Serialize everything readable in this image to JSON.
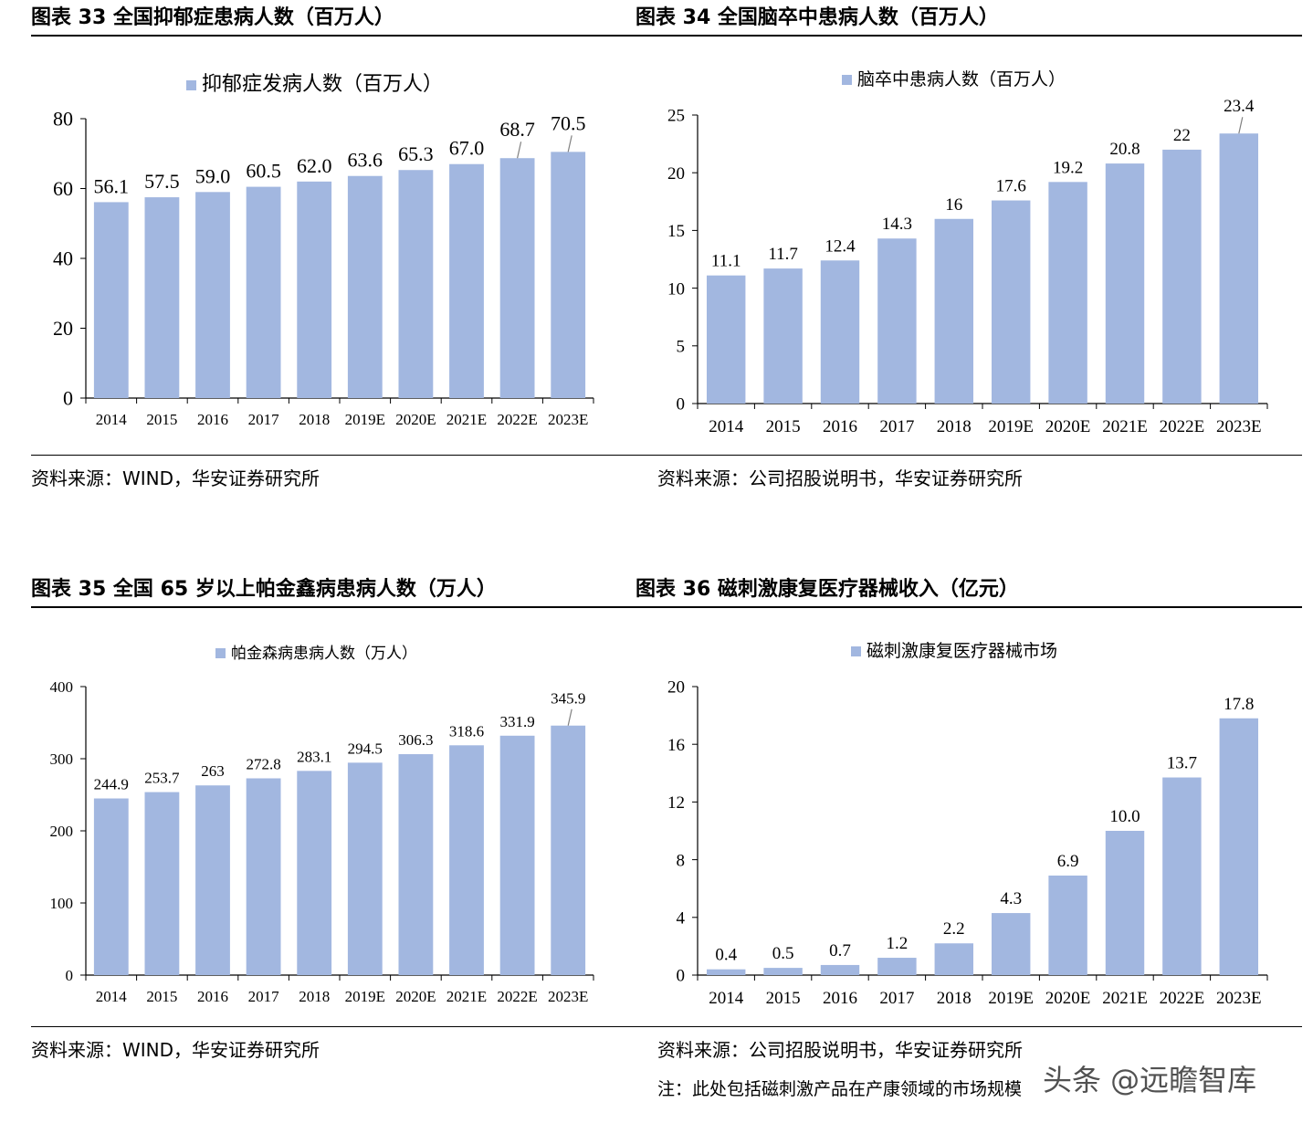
{
  "panels": {
    "p33": {
      "title": "图表 33 全国抑郁症患病人数（百万人）",
      "source": "资料来源：WIND，华安证券研究所"
    },
    "p34": {
      "title": "图表 34 全国脑卒中患病人数（百万人）",
      "source": "资料来源：公司招股说明书，华安证券研究所"
    },
    "p35": {
      "title": "图表 35 全国 65 岁以上帕金鑫病患病人数（万人）",
      "source": "资料来源：WIND，华安证券研究所"
    },
    "p36": {
      "title": "图表 36 磁刺激康复医疗器械收入（亿元）",
      "source": "资料来源：公司招股说明书，华安证券研究所"
    }
  },
  "note": "注：此处包括磁刺激产品在产康领域的市场规模",
  "watermark": "头条 @远瞻智库",
  "colors": {
    "bar": "#a2b7e0",
    "axis": "#000000",
    "leader": "#808080"
  },
  "chart_data": [
    {
      "type": "bar",
      "categories": [
        "2014",
        "2015",
        "2016",
        "2017",
        "2018",
        "2019E",
        "2020E",
        "2021E",
        "2022E",
        "2023E"
      ],
      "series": [
        {
          "name": "抑郁症发病人数（百万人）",
          "values": [
            56.1,
            57.5,
            59.0,
            60.5,
            62.0,
            63.6,
            65.3,
            67.0,
            68.7,
            70.5
          ]
        }
      ],
      "labels": [
        "56.1",
        "57.5",
        "59.0",
        "60.5",
        "62.0",
        "63.6",
        "65.3",
        "67.0",
        "68.7",
        "70.5"
      ],
      "yticks": [
        0,
        20,
        40,
        60,
        80
      ],
      "ylim": [
        0,
        80
      ],
      "legend": "top-center"
    },
    {
      "type": "bar",
      "categories": [
        "2014",
        "2015",
        "2016",
        "2017",
        "2018",
        "2019E",
        "2020E",
        "2021E",
        "2022E",
        "2023E"
      ],
      "series": [
        {
          "name": "脑卒中患病人数（百万人）",
          "values": [
            11.1,
            11.7,
            12.4,
            14.3,
            16,
            17.6,
            19.2,
            20.8,
            22,
            23.4
          ]
        }
      ],
      "labels": [
        "11.1",
        "11.7",
        "12.4",
        "14.3",
        "16",
        "17.6",
        "19.2",
        "20.8",
        "22",
        "23.4"
      ],
      "yticks": [
        0,
        5,
        10,
        15,
        20,
        25
      ],
      "ylim": [
        0,
        25
      ],
      "legend": "top-center"
    },
    {
      "type": "bar",
      "categories": [
        "2014",
        "2015",
        "2016",
        "2017",
        "2018",
        "2019E",
        "2020E",
        "2021E",
        "2022E",
        "2023E"
      ],
      "series": [
        {
          "name": "帕金森病患病人数（万人）",
          "values": [
            244.9,
            253.7,
            263,
            272.8,
            283.1,
            294.5,
            306.3,
            318.6,
            331.9,
            345.9
          ]
        }
      ],
      "labels": [
        "244.9",
        "253.7",
        "263",
        "272.8",
        "283.1",
        "294.5",
        "306.3",
        "318.6",
        "331.9",
        "345.9"
      ],
      "yticks": [
        0,
        100,
        200,
        300,
        400
      ],
      "ylim": [
        0,
        400
      ],
      "legend": "top-center"
    },
    {
      "type": "bar",
      "categories": [
        "2014",
        "2015",
        "2016",
        "2017",
        "2018",
        "2019E",
        "2020E",
        "2021E",
        "2022E",
        "2023E"
      ],
      "series": [
        {
          "name": "磁刺激康复医疗器械市场",
          "values": [
            0.4,
            0.5,
            0.7,
            1.2,
            2.2,
            4.3,
            6.9,
            10.0,
            13.7,
            17.8
          ]
        }
      ],
      "labels": [
        "0.4",
        "0.5",
        "0.7",
        "1.2",
        "2.2",
        "4.3",
        "6.9",
        "10.0",
        "13.7",
        "17.8"
      ],
      "yticks": [
        0,
        4,
        8,
        12,
        16,
        20
      ],
      "ylim": [
        0,
        20
      ],
      "legend": "top-center"
    }
  ]
}
